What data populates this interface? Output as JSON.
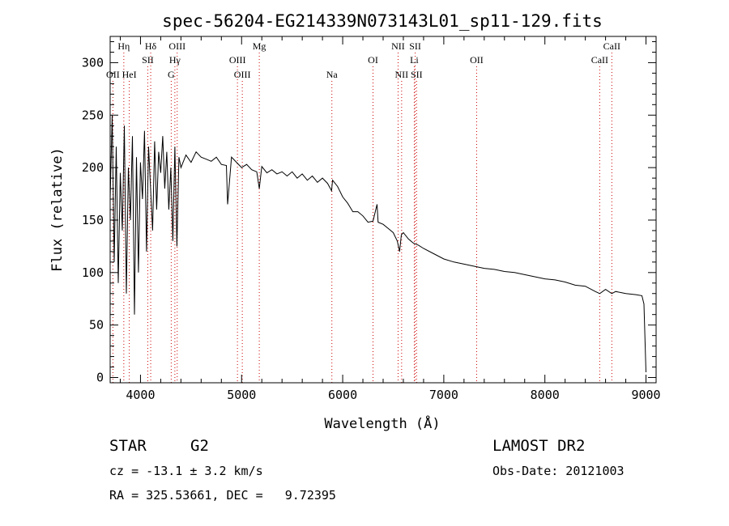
{
  "chart_data": {
    "type": "line",
    "title": "spec-56204-EG214339N073143L01_sp11-129.fits",
    "xlabel": "Wavelength (Å)",
    "ylabel": "Flux (relative)",
    "xlim": [
      3700,
      9100
    ],
    "ylim": [
      -5,
      325
    ],
    "xticks": [
      4000,
      5000,
      6000,
      7000,
      8000,
      9000
    ],
    "yticks": [
      0,
      50,
      100,
      150,
      200,
      250,
      300
    ],
    "grid": false,
    "legend": "none",
    "line_color": "#000000",
    "marker_color": "#cc0000",
    "spectrum": {
      "x": [
        3700,
        3720,
        3740,
        3760,
        3780,
        3800,
        3820,
        3840,
        3860,
        3880,
        3900,
        3920,
        3940,
        3960,
        3980,
        4000,
        4020,
        4040,
        4060,
        4080,
        4100,
        4120,
        4140,
        4160,
        4180,
        4200,
        4220,
        4240,
        4260,
        4280,
        4300,
        4320,
        4340,
        4360,
        4380,
        4400,
        4450,
        4500,
        4550,
        4600,
        4650,
        4700,
        4750,
        4800,
        4850,
        4862,
        4900,
        4950,
        5000,
        5050,
        5100,
        5150,
        5175,
        5200,
        5250,
        5300,
        5350,
        5400,
        5450,
        5500,
        5550,
        5600,
        5650,
        5700,
        5750,
        5800,
        5850,
        5890,
        5900,
        5950,
        6000,
        6050,
        6100,
        6150,
        6200,
        6250,
        6300,
        6340,
        6350,
        6400,
        6450,
        6500,
        6540,
        6563,
        6580,
        6600,
        6650,
        6700,
        6750,
        6800,
        6900,
        7000,
        7100,
        7200,
        7300,
        7400,
        7500,
        7600,
        7700,
        7800,
        7900,
        8000,
        8100,
        8200,
        8300,
        8400,
        8498,
        8542,
        8600,
        8662,
        8700,
        8800,
        8900,
        8960,
        8980,
        9000
      ],
      "y": [
        170,
        250,
        110,
        220,
        90,
        195,
        140,
        240,
        80,
        200,
        150,
        230,
        60,
        210,
        100,
        205,
        170,
        235,
        120,
        220,
        180,
        140,
        225,
        160,
        215,
        195,
        230,
        180,
        215,
        160,
        200,
        130,
        220,
        125,
        210,
        200,
        212,
        205,
        215,
        210,
        208,
        206,
        210,
        203,
        202,
        165,
        210,
        205,
        200,
        203,
        198,
        196,
        180,
        201,
        195,
        198,
        194,
        196,
        192,
        196,
        190,
        194,
        188,
        192,
        186,
        190,
        185,
        178,
        188,
        182,
        172,
        166,
        158,
        158,
        154,
        148,
        149,
        165,
        148,
        146,
        142,
        138,
        130,
        120,
        136,
        138,
        132,
        128,
        126,
        123,
        118,
        113,
        110,
        108,
        106,
        104,
        103,
        101,
        100,
        98,
        96,
        94,
        93,
        91,
        88,
        87,
        82,
        80,
        84,
        80,
        82,
        80,
        79,
        78,
        70,
        5
      ]
    },
    "lines": [
      {
        "label": "Hη",
        "wavelength": 3835,
        "row": 0
      },
      {
        "label": "Hδ",
        "wavelength": 4101,
        "row": 0
      },
      {
        "label": "OIII",
        "wavelength": 4363,
        "row": 0
      },
      {
        "label": "Mg",
        "wavelength": 5175,
        "row": 0
      },
      {
        "label": "NII",
        "wavelength": 6548,
        "row": 0
      },
      {
        "label": "SII",
        "wavelength": 6717,
        "row": 0
      },
      {
        "label": "CaII",
        "wavelength": 8662,
        "row": 0
      },
      {
        "label": "SII",
        "wavelength": 4072,
        "row": 1
      },
      {
        "label": "Hγ",
        "wavelength": 4340,
        "row": 1
      },
      {
        "label": "OIII",
        "wavelength": 4959,
        "row": 1
      },
      {
        "label": "OI",
        "wavelength": 6300,
        "row": 1
      },
      {
        "label": "Li",
        "wavelength": 6708,
        "row": 1
      },
      {
        "label": "OII",
        "wavelength": 7325,
        "row": 1
      },
      {
        "label": "CaII",
        "wavelength": 8542,
        "row": 1
      },
      {
        "label": "OII",
        "wavelength": 3727,
        "row": 2
      },
      {
        "label": "HeI",
        "wavelength": 3889,
        "row": 2
      },
      {
        "label": "G",
        "wavelength": 4304,
        "row": 2
      },
      {
        "label": "OIII",
        "wavelength": 5007,
        "row": 2
      },
      {
        "label": "Na",
        "wavelength": 5893,
        "row": 2
      },
      {
        "label": "NII",
        "wavelength": 6583,
        "row": 2
      },
      {
        "label": "SII",
        "wavelength": 6731,
        "row": 2
      }
    ]
  },
  "info": {
    "object_class": "STAR",
    "subclass": "G2",
    "survey": "LAMOST DR2",
    "cz": "cz = -13.1 ± 3.2 km/s",
    "obs_date": "Obs-Date: 20121003",
    "coords": "RA = 325.53661, DEC =   9.72395"
  }
}
